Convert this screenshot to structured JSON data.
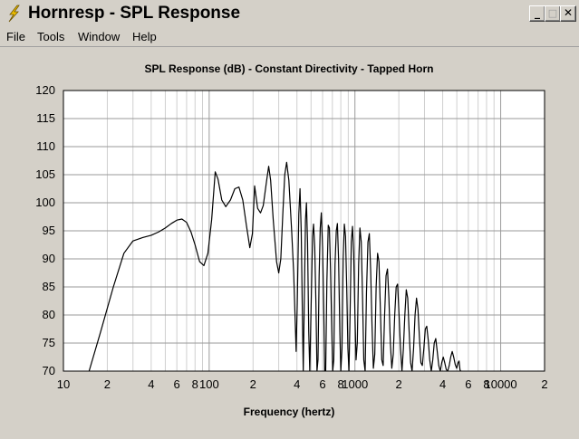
{
  "window": {
    "title": "Hornresp - SPL Response",
    "minimize_label": "_",
    "maximize_label": "□",
    "close_label": "✕",
    "icon": "lightning-bolt-icon"
  },
  "menu": {
    "items": [
      {
        "label": "File"
      },
      {
        "label": "Tools"
      },
      {
        "label": "Window"
      },
      {
        "label": "Help"
      }
    ]
  },
  "chart_data": {
    "type": "line",
    "title": "SPL Response (dB) - Constant Directivity - Tapped Horn",
    "xlabel": "Frequency (hertz)",
    "ylabel": "",
    "xscale": "log",
    "xlim": [
      10,
      20000
    ],
    "ylim": [
      70,
      120
    ],
    "yticks": [
      70,
      75,
      80,
      85,
      90,
      95,
      100,
      105,
      110,
      115,
      120
    ],
    "xtick_labels": [
      {
        "value": 10,
        "label": "10"
      },
      {
        "value": 20,
        "label": "2"
      },
      {
        "value": 40,
        "label": "4"
      },
      {
        "value": 60,
        "label": "6"
      },
      {
        "value": 80,
        "label": "8"
      },
      {
        "value": 100,
        "label": "100"
      },
      {
        "value": 200,
        "label": "2"
      },
      {
        "value": 400,
        "label": "4"
      },
      {
        "value": 600,
        "label": "6"
      },
      {
        "value": 800,
        "label": "8"
      },
      {
        "value": 1000,
        "label": "1000"
      },
      {
        "value": 2000,
        "label": "2"
      },
      {
        "value": 4000,
        "label": "4"
      },
      {
        "value": 6000,
        "label": "6"
      },
      {
        "value": 8000,
        "label": "8"
      },
      {
        "value": 10000,
        "label": "10000"
      },
      {
        "value": 20000,
        "label": "2"
      }
    ],
    "grid": true,
    "series": [
      {
        "color": "#000000",
        "points": [
          [
            15,
            70
          ],
          [
            18,
            77
          ],
          [
            22,
            85
          ],
          [
            26,
            91
          ],
          [
            30,
            93.2
          ],
          [
            35,
            93.8
          ],
          [
            40,
            94.2
          ],
          [
            45,
            94.8
          ],
          [
            50,
            95.5
          ],
          [
            55,
            96.3
          ],
          [
            60,
            96.9
          ],
          [
            65,
            97.1
          ],
          [
            70,
            96.5
          ],
          [
            75,
            94.8
          ],
          [
            80,
            92.5
          ],
          [
            86,
            89.5
          ],
          [
            92,
            88.8
          ],
          [
            98,
            91
          ],
          [
            104,
            97
          ],
          [
            110,
            105.5
          ],
          [
            115,
            104.2
          ],
          [
            122,
            100.5
          ],
          [
            130,
            99.3
          ],
          [
            140,
            100.5
          ],
          [
            150,
            102.5
          ],
          [
            160,
            102.8
          ],
          [
            170,
            100.5
          ],
          [
            180,
            96
          ],
          [
            190,
            92
          ],
          [
            198,
            94.5
          ],
          [
            205,
            103
          ],
          [
            215,
            99
          ],
          [
            225,
            98.2
          ],
          [
            235,
            99.5
          ],
          [
            248,
            104
          ],
          [
            256,
            106.5
          ],
          [
            264,
            104
          ],
          [
            275,
            97
          ],
          [
            290,
            89.5
          ],
          [
            300,
            87.5
          ],
          [
            310,
            90
          ],
          [
            320,
            98
          ],
          [
            330,
            105
          ],
          [
            340,
            107.2
          ],
          [
            352,
            104
          ],
          [
            368,
            95
          ],
          [
            380,
            87.5
          ],
          [
            388,
            80
          ],
          [
            395,
            73.5
          ],
          [
            402,
            82
          ],
          [
            412,
            98
          ],
          [
            420,
            102.5
          ],
          [
            428,
            95
          ],
          [
            436,
            80
          ],
          [
            442,
            70
          ],
          [
            449,
            82
          ],
          [
            458,
            97
          ],
          [
            465,
            100
          ],
          [
            473,
            93
          ],
          [
            482,
            77
          ],
          [
            490,
            70
          ],
          [
            500,
            81
          ],
          [
            512,
            94
          ],
          [
            520,
            96.2
          ],
          [
            530,
            92
          ],
          [
            540,
            82
          ],
          [
            549,
            70
          ],
          [
            558,
            72
          ],
          [
            568,
            87
          ],
          [
            578,
            95.5
          ],
          [
            588,
            98.2
          ],
          [
            600,
            92
          ],
          [
            612,
            80
          ],
          [
            620,
            70
          ],
          [
            630,
            70
          ],
          [
            642,
            86
          ],
          [
            656,
            96
          ],
          [
            668,
            95.5
          ],
          [
            680,
            88
          ],
          [
            694,
            77
          ],
          [
            704,
            70
          ],
          [
            716,
            72
          ],
          [
            730,
            89
          ],
          [
            745,
            95
          ],
          [
            758,
            96.3
          ],
          [
            772,
            90
          ],
          [
            788,
            77
          ],
          [
            800,
            70
          ],
          [
            815,
            74
          ],
          [
            830,
            90
          ],
          [
            846,
            96.2
          ],
          [
            862,
            94
          ],
          [
            878,
            85
          ],
          [
            895,
            74
          ],
          [
            910,
            70
          ],
          [
            926,
            80
          ],
          [
            944,
            93
          ],
          [
            962,
            95.8
          ],
          [
            980,
            91
          ],
          [
            1000,
            80
          ],
          [
            1018,
            72
          ],
          [
            1038,
            75
          ],
          [
            1060,
            89
          ],
          [
            1082,
            95.5
          ],
          [
            1105,
            93
          ],
          [
            1128,
            83
          ],
          [
            1150,
            72
          ],
          [
            1175,
            70
          ],
          [
            1200,
            84
          ],
          [
            1228,
            93
          ],
          [
            1255,
            94.5
          ],
          [
            1282,
            88
          ],
          [
            1310,
            78
          ],
          [
            1338,
            70.5
          ],
          [
            1368,
            73
          ],
          [
            1398,
            85
          ],
          [
            1430,
            91
          ],
          [
            1462,
            89.5
          ],
          [
            1495,
            81
          ],
          [
            1528,
            72
          ],
          [
            1562,
            71
          ],
          [
            1598,
            80
          ],
          [
            1635,
            87
          ],
          [
            1672,
            88.2
          ],
          [
            1710,
            83
          ],
          [
            1750,
            75
          ],
          [
            1790,
            70.5
          ],
          [
            1832,
            73
          ],
          [
            1875,
            80
          ],
          [
            1918,
            85
          ],
          [
            1962,
            85.5
          ],
          [
            2008,
            80
          ],
          [
            2055,
            74
          ],
          [
            2102,
            70
          ],
          [
            2150,
            74
          ],
          [
            2200,
            80
          ],
          [
            2250,
            84.5
          ],
          [
            2302,
            83
          ],
          [
            2355,
            77
          ],
          [
            2410,
            71.5
          ],
          [
            2466,
            70
          ],
          [
            2525,
            74
          ],
          [
            2585,
            80
          ],
          [
            2645,
            83
          ],
          [
            2707,
            81
          ],
          [
            2770,
            76
          ],
          [
            2835,
            71.5
          ],
          [
            2900,
            71
          ],
          [
            2970,
            74
          ],
          [
            3040,
            77.5
          ],
          [
            3110,
            78
          ],
          [
            3185,
            75.5
          ],
          [
            3260,
            72
          ],
          [
            3340,
            70
          ],
          [
            3420,
            72
          ],
          [
            3500,
            75
          ],
          [
            3585,
            75.8
          ],
          [
            3670,
            73.5
          ],
          [
            3760,
            71
          ],
          [
            3850,
            70
          ],
          [
            3942,
            71.5
          ],
          [
            4036,
            72.5
          ],
          [
            4132,
            71.5
          ],
          [
            4230,
            70.3
          ],
          [
            4330,
            70
          ],
          [
            4435,
            71
          ],
          [
            4540,
            72.5
          ],
          [
            4650,
            73.5
          ],
          [
            4760,
            72.5
          ],
          [
            4873,
            71.2
          ],
          [
            4990,
            70.5
          ],
          [
            5100,
            71.5
          ],
          [
            5180,
            71.8
          ],
          [
            5260,
            70.2
          ],
          [
            5320,
            70
          ]
        ]
      }
    ]
  }
}
